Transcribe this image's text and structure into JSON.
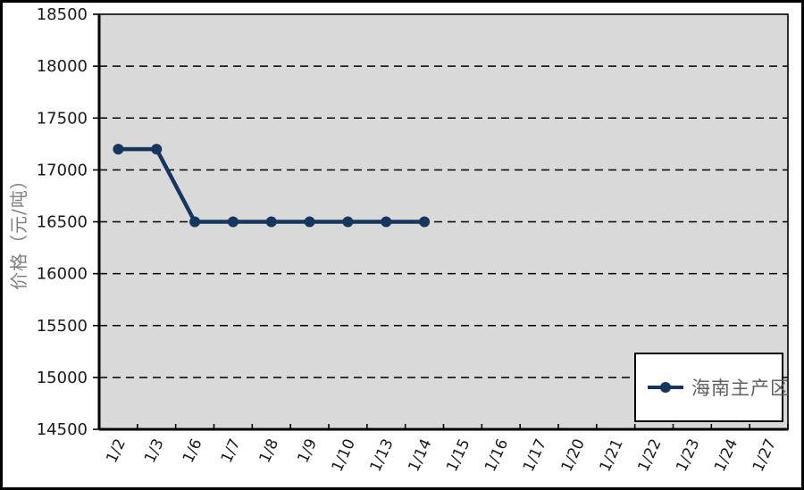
{
  "chart_data": {
    "type": "line",
    "title": "",
    "xlabel": "",
    "ylabel": "价格（元/吨）",
    "ylim": [
      14500,
      18500
    ],
    "ytick_step": 500,
    "grid": "horizontal-dashed",
    "legend_position": "inside-bottom-right",
    "categories": [
      "1/2",
      "1/3",
      "1/6",
      "1/7",
      "1/8",
      "1/9",
      "1/10",
      "1/13",
      "1/14",
      "1/15",
      "1/16",
      "1/17",
      "1/20",
      "1/21",
      "1/22",
      "1/23",
      "1/24",
      "1/27"
    ],
    "series": [
      {
        "name": "海南主产区",
        "marker": "circle",
        "color": "#17365D",
        "values": [
          17200,
          17200,
          16500,
          16500,
          16500,
          16500,
          16500,
          16500,
          16500,
          null,
          null,
          null,
          null,
          null,
          null,
          null,
          null,
          null
        ]
      }
    ]
  },
  "colors": {
    "plot_background": "#D9D9D9",
    "outer_background": "#FFFFFF",
    "gridline": "#000000",
    "axis": "#000000",
    "tick_label": "#1A1A1A",
    "axis_title_text": "#7F7F7F",
    "legend_text": "#5F5F5F",
    "frame_border": "#000000",
    "series_line": "#17365D"
  }
}
